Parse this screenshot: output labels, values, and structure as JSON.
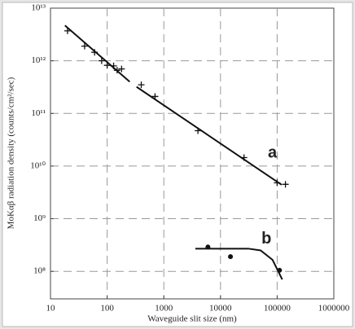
{
  "chart_data": {
    "type": "scatter",
    "x_label": "Waveguide slit size (nm)",
    "y_label": "MoKαβ radiation density (counts/cm²/sec)",
    "x_log": true,
    "y_log": true,
    "grid": true,
    "xlim": [
      10,
      1000000
    ],
    "ylim": [
      30000000,
      10000000000000
    ],
    "xticks": [
      10,
      100,
      1000,
      10000,
      100000,
      1000000
    ],
    "yticks": [
      {
        "value": 100000000,
        "label": "10⁸"
      },
      {
        "value": 1000000000,
        "label": "10⁹"
      },
      {
        "value": 10000000000,
        "label": "10¹⁰"
      },
      {
        "value": 100000000000,
        "label": "10¹¹"
      },
      {
        "value": 1000000000000,
        "label": "10¹²"
      },
      {
        "value": 10000000000000,
        "label": "10¹³"
      }
    ],
    "series": [
      {
        "name": "a",
        "marker": "plus",
        "color": "#111",
        "x": [
          20,
          40,
          60,
          80,
          100,
          130,
          150,
          180,
          400,
          700,
          4000,
          26000,
          100000,
          140000
        ],
        "values": [
          3700000000000,
          1900000000000,
          1450000000000,
          1000000000000,
          820000000000,
          800000000000,
          660000000000,
          700000000000,
          350000000000,
          210000000000,
          47000000000,
          14500000000,
          4800000000,
          4500000000
        ]
      },
      {
        "name": "b",
        "marker": "dot",
        "color": "#111",
        "x": [
          6000,
          15000,
          110000
        ],
        "values": [
          290000000,
          190000000,
          105000000
        ]
      }
    ],
    "fit_lines": [
      {
        "x": [
          18,
          250
        ],
        "values": [
          4700000000000,
          400000000000
        ]
      },
      {
        "x": [
          330,
          120000
        ],
        "values": [
          320000000000,
          4400000000
        ]
      },
      {
        "x": [
          3600,
          31000,
          51000,
          83000,
          123000
        ],
        "values": [
          270000000,
          270000000,
          250000000,
          165000000,
          70000000
        ]
      }
    ]
  }
}
